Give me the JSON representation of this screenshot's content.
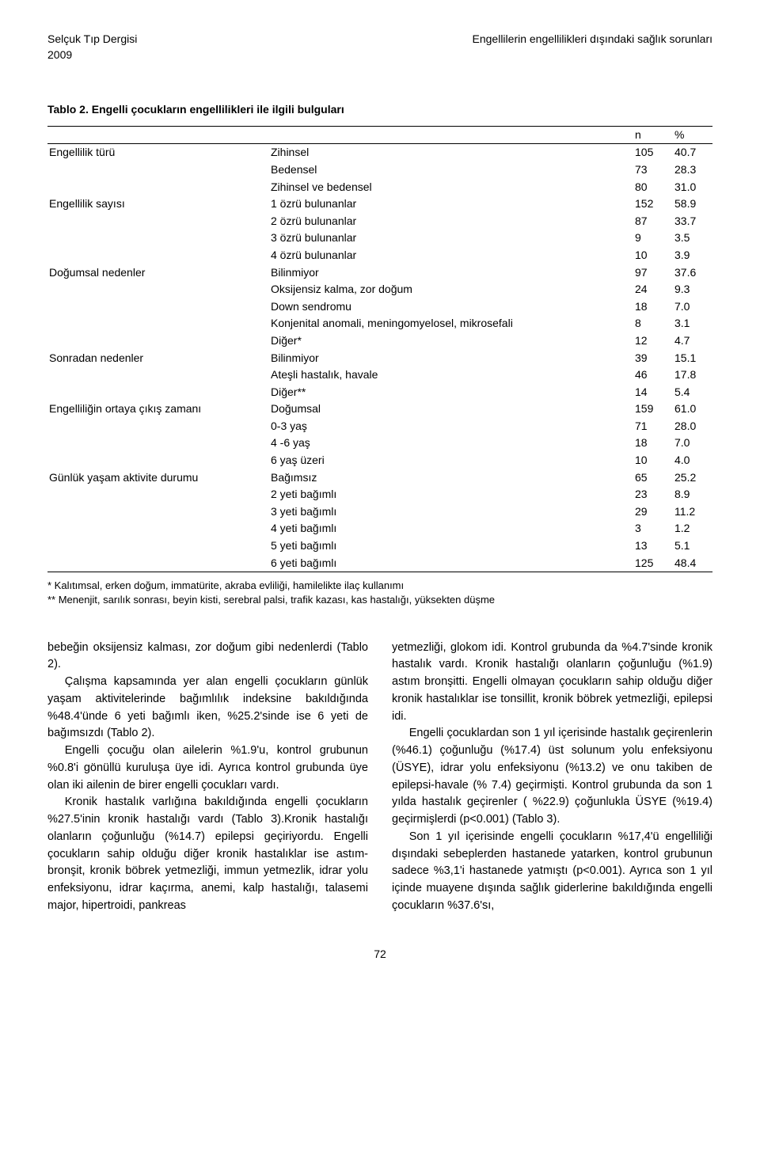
{
  "header": {
    "journal": "Selçuk Tıp Dergisi",
    "year": "2009",
    "article_title": "Engellilerin engellilikleri dışındaki sağlık sorunları"
  },
  "table": {
    "title": "Tablo 2. Engelli çocukların engellilikleri ile ilgili bulguları",
    "header_n": "n",
    "header_pct": "%",
    "rows": [
      {
        "group": "Engellilik türü",
        "label": "Zihinsel",
        "n": "105",
        "pct": "40.7"
      },
      {
        "group": "",
        "label": "Bedensel",
        "n": "73",
        "pct": "28.3"
      },
      {
        "group": "",
        "label": "Zihinsel ve bedensel",
        "n": "80",
        "pct": "31.0"
      },
      {
        "group": "Engellilik sayısı",
        "label": "1 özrü bulunanlar",
        "n": "152",
        "pct": "58.9"
      },
      {
        "group": "",
        "label": "2 özrü bulunanlar",
        "n": "87",
        "pct": "33.7"
      },
      {
        "group": "",
        "label": "3 özrü bulunanlar",
        "n": "9",
        "pct": "3.5"
      },
      {
        "group": "",
        "label": "4 özrü bulunanlar",
        "n": "10",
        "pct": "3.9"
      },
      {
        "group": "Doğumsal nedenler",
        "label": "Bilinmiyor",
        "n": "97",
        "pct": "37.6"
      },
      {
        "group": "",
        "label": "Oksijensiz kalma, zor doğum",
        "n": "24",
        "pct": "9.3"
      },
      {
        "group": "",
        "label": "Down sendromu",
        "n": "18",
        "pct": "7.0"
      },
      {
        "group": "",
        "label": "Konjenital anomali, meningomyelosel, mikrosefali",
        "n": "8",
        "pct": "3.1"
      },
      {
        "group": "",
        "label": "Diğer*",
        "n": "12",
        "pct": "4.7"
      },
      {
        "group": "Sonradan nedenler",
        "label": "Bilinmiyor",
        "n": "39",
        "pct": "15.1"
      },
      {
        "group": "",
        "label": "Ateşli hastalık, havale",
        "n": "46",
        "pct": "17.8"
      },
      {
        "group": "",
        "label": "Diğer**",
        "n": "14",
        "pct": "5.4"
      },
      {
        "group": "Engelliliğin ortaya çıkış zamanı",
        "label": "Doğumsal",
        "n": "159",
        "pct": "61.0"
      },
      {
        "group": "",
        "label": "0-3 yaş",
        "n": "71",
        "pct": "28.0"
      },
      {
        "group": "",
        "label": "4 -6 yaş",
        "n": "18",
        "pct": "7.0"
      },
      {
        "group": "",
        "label": "6 yaş üzeri",
        "n": "10",
        "pct": "4.0"
      },
      {
        "group": "Günlük yaşam aktivite durumu",
        "label": "Bağımsız",
        "n": "65",
        "pct": "25.2"
      },
      {
        "group": "",
        "label": "2 yeti bağımlı",
        "n": "23",
        "pct": "8.9"
      },
      {
        "group": "",
        "label": "3 yeti bağımlı",
        "n": "29",
        "pct": "11.2"
      },
      {
        "group": "",
        "label": "4 yeti bağımlı",
        "n": "3",
        "pct": "1.2"
      },
      {
        "group": "",
        "label": "5 yeti bağımlı",
        "n": "13",
        "pct": "5.1"
      },
      {
        "group": "",
        "label": "6 yeti bağımlı",
        "n": "125",
        "pct": "48.4"
      }
    ],
    "footnote1": "* Kalıtımsal, erken doğum, immatürite, akraba evliliği, hamilelikte ilaç kullanımı",
    "footnote2": "** Menenjit, sarılık sonrası, beyin kisti, serebral palsi, trafik kazası, kas hastalığı, yüksekten düşme"
  },
  "body": {
    "left": [
      "bebeğin oksijensiz kalması, zor doğum gibi nedenlerdi (Tablo 2).",
      "Çalışma kapsamında yer alan engelli çocukların günlük yaşam aktivitelerinde bağımlılık indeksine bakıldığında %48.4'ünde 6 yeti bağımlı iken, %25.2'sinde ise 6 yeti de bağımsızdı (Tablo 2).",
      "Engelli çocuğu olan ailelerin %1.9'u, kontrol grubunun %0.8'i gönüllü kuruluşa üye idi. Ayrıca kontrol grubunda üye olan iki ailenin de birer engelli çocukları vardı.",
      "Kronik hastalık varlığına bakıldığında engelli çocukların %27.5'inin kronik hastalığı vardı (Tablo 3).Kronik hastalığı olanların çoğunluğu (%14.7) epilepsi geçiriyordu. Engelli çocukların sahip olduğu diğer kronik hastalıklar ise astım-bronşit, kronik böbrek yetmezliği, immun yetmezlik, idrar yolu enfeksiyonu, idrar kaçırma, anemi, kalp hastalığı, talasemi major, hipertroidi, pankreas"
    ],
    "right": [
      "yetmezliği, glokom idi. Kontrol grubunda da %4.7'sinde kronik hastalık vardı. Kronik hastalığı olanların çoğunluğu (%1.9) astım bronşitti. Engelli olmayan çocukların sahip olduğu diğer kronik hastalıklar ise tonsillit, kronik böbrek yetmezliği, epilepsi idi.",
      "Engelli çocuklardan son 1 yıl içerisinde hastalık geçirenlerin (%46.1) çoğunluğu (%17.4) üst solunum yolu enfeksiyonu (ÜSYE), idrar yolu enfeksiyonu (%13.2) ve onu takiben de epilepsi-havale (% 7.4) geçirmişti. Kontrol grubunda da son 1 yılda hastalık geçirenler ( %22.9) çoğunlukla ÜSYE (%19.4) geçirmişlerdi (p<0.001) (Tablo 3).",
      "Son 1 yıl içerisinde engelli çocukların %17,4'ü engelliliği dışındaki sebeplerden hastanede yatarken, kontrol grubunun sadece %3,1'i hastanede yatmıştı (p<0.001). Ayrıca son 1 yıl içinde muayene dışında sağlık giderlerine bakıldığında engelli çocukların %37.6'sı,"
    ]
  },
  "page_number": "72"
}
